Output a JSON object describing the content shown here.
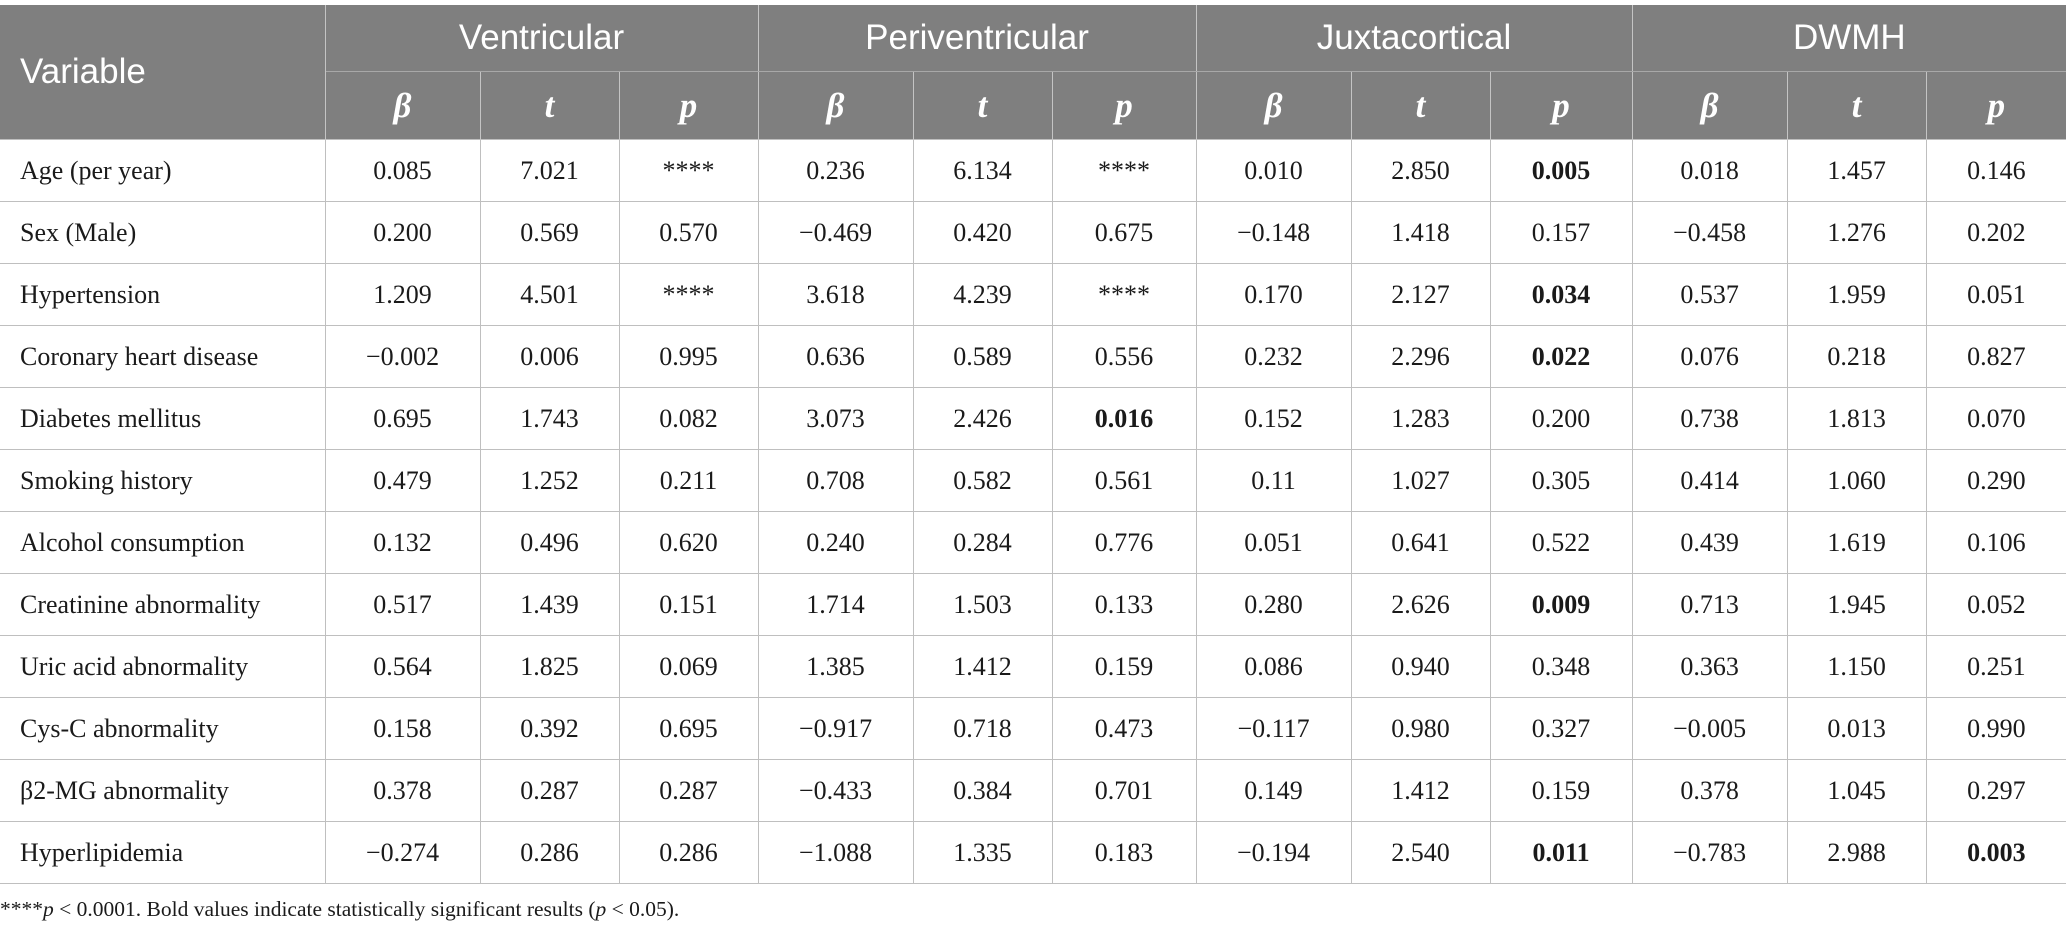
{
  "table": {
    "header_variable": "Variable",
    "groups": [
      "Ventricular",
      "Periventricular",
      "Juxtacortical",
      "DWMH"
    ],
    "subheaders": [
      "β",
      "t",
      "p"
    ],
    "rows": [
      {
        "label": "Age (per year)",
        "cells": [
          "0.085",
          "7.021",
          "****",
          "0.236",
          "6.134",
          "****",
          "0.010",
          "2.850",
          "0.005",
          "0.018",
          "1.457",
          "0.146"
        ],
        "bold": [
          8
        ]
      },
      {
        "label": "Sex (Male)",
        "cells": [
          "0.200",
          "0.569",
          "0.570",
          "−0.469",
          "0.420",
          "0.675",
          "−0.148",
          "1.418",
          "0.157",
          "−0.458",
          "1.276",
          "0.202"
        ],
        "bold": []
      },
      {
        "label": "Hypertension",
        "cells": [
          "1.209",
          "4.501",
          "****",
          "3.618",
          "4.239",
          "****",
          "0.170",
          "2.127",
          "0.034",
          "0.537",
          "1.959",
          "0.051"
        ],
        "bold": [
          8
        ]
      },
      {
        "label": "Coronary heart disease",
        "cells": [
          "−0.002",
          "0.006",
          "0.995",
          "0.636",
          "0.589",
          "0.556",
          "0.232",
          "2.296",
          "0.022",
          "0.076",
          "0.218",
          "0.827"
        ],
        "bold": [
          8
        ]
      },
      {
        "label": "Diabetes mellitus",
        "cells": [
          "0.695",
          "1.743",
          "0.082",
          "3.073",
          "2.426",
          "0.016",
          "0.152",
          "1.283",
          "0.200",
          "0.738",
          "1.813",
          "0.070"
        ],
        "bold": [
          5
        ]
      },
      {
        "label": "Smoking history",
        "cells": [
          "0.479",
          "1.252",
          "0.211",
          "0.708",
          "0.582",
          "0.561",
          "0.11",
          "1.027",
          "0.305",
          "0.414",
          "1.060",
          "0.290"
        ],
        "bold": []
      },
      {
        "label": "Alcohol consumption",
        "cells": [
          "0.132",
          "0.496",
          "0.620",
          "0.240",
          "0.284",
          "0.776",
          "0.051",
          "0.641",
          "0.522",
          "0.439",
          "1.619",
          "0.106"
        ],
        "bold": []
      },
      {
        "label": "Creatinine abnormality",
        "cells": [
          "0.517",
          "1.439",
          "0.151",
          "1.714",
          "1.503",
          "0.133",
          "0.280",
          "2.626",
          "0.009",
          "0.713",
          "1.945",
          "0.052"
        ],
        "bold": [
          8
        ]
      },
      {
        "label": "Uric acid abnormality",
        "cells": [
          "0.564",
          "1.825",
          "0.069",
          "1.385",
          "1.412",
          "0.159",
          "0.086",
          "0.940",
          "0.348",
          "0.363",
          "1.150",
          "0.251"
        ],
        "bold": []
      },
      {
        "label": "Cys-C abnormality",
        "cells": [
          "0.158",
          "0.392",
          "0.695",
          "−0.917",
          "0.718",
          "0.473",
          "−0.117",
          "0.980",
          "0.327",
          "−0.005",
          "0.013",
          "0.990"
        ],
        "bold": []
      },
      {
        "label": "β2-MG abnormality",
        "cells": [
          "0.378",
          "0.287",
          "0.287",
          "−0.433",
          "0.384",
          "0.701",
          "0.149",
          "1.412",
          "0.159",
          "0.378",
          "1.045",
          "0.297"
        ],
        "bold": []
      },
      {
        "label": "Hyperlipidemia",
        "cells": [
          "−0.274",
          "0.286",
          "0.286",
          "−1.088",
          "1.335",
          "0.183",
          "−0.194",
          "2.540",
          "0.011",
          "−0.783",
          "2.988",
          "0.003"
        ],
        "bold": [
          8,
          11
        ]
      }
    ]
  },
  "footnote": {
    "stars": "****",
    "p1": "p",
    "text1": " < 0.0001. Bold values indicate statistically significant results (",
    "p2": "p",
    "text2": " < 0.05)."
  }
}
